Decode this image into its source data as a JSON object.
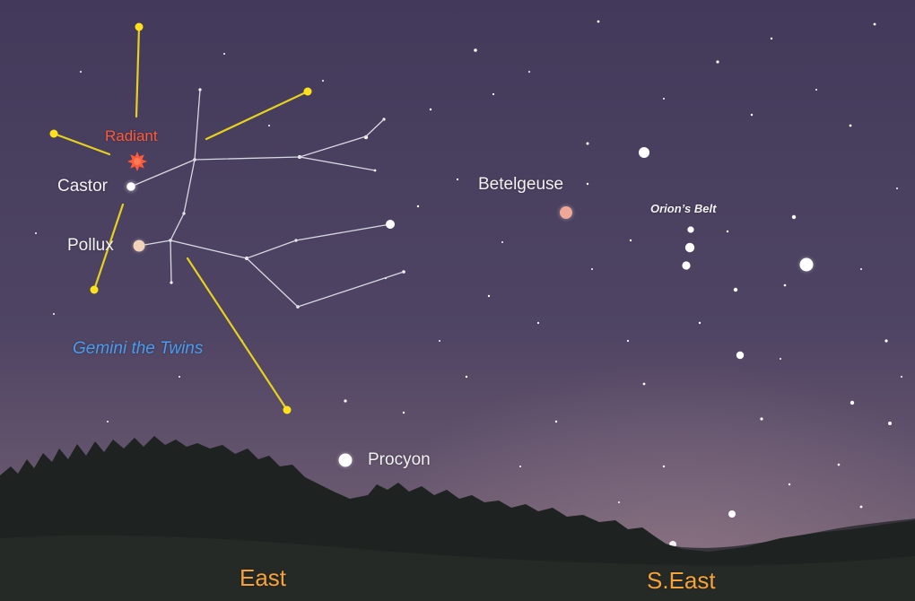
{
  "labels": {
    "radiant": "Radiant",
    "castor": "Castor",
    "pollux": "Pollux",
    "gemini": "Gemini the Twins",
    "betelgeuse": "Betelgeuse",
    "orions_belt": "Orion’s Belt",
    "procyon": "Procyon"
  },
  "directions": {
    "east": "East",
    "southeast": "S.East"
  },
  "colors": {
    "sky_top": "#443a5c",
    "sky_horizon": "#6a5a72",
    "meteor_trail": "#e6d21e",
    "meteor_head": "#ffe21a",
    "radiant": "#ff5a3a",
    "constellation_lines": "#d8d8e4",
    "gemini_label": "#4a9cf0",
    "direction_label": "#f6a23a",
    "pollux_star": "#f3d3b8",
    "betelgeuse_star": "#f0a896"
  },
  "icons": {
    "radiant": "radiant-burst-icon",
    "meteor": "meteor-dot-icon"
  }
}
